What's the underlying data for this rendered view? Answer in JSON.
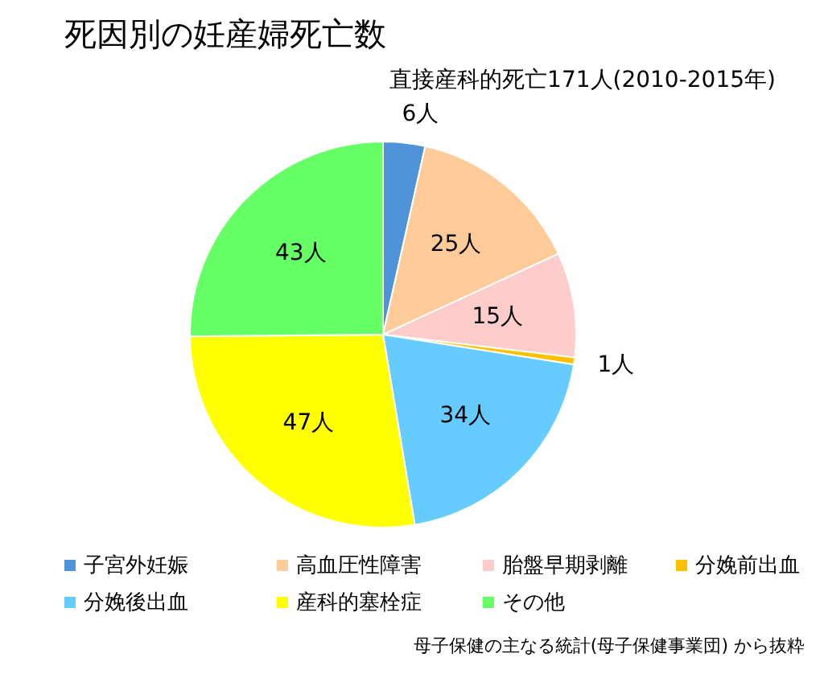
{
  "chart_data": {
    "type": "pie",
    "title": "死因別の妊産婦死亡数",
    "subtitle": "直接産科的死亡171人(2010-2015年)",
    "categories": [
      "子宮外妊娠",
      "高血圧性障害",
      "胎盤早期剥離",
      "分娩前出血",
      "分娩後出血",
      "産科的塞栓症",
      "その他"
    ],
    "values": [
      6,
      25,
      15,
      1,
      34,
      47,
      43
    ],
    "colors": [
      "#4f93d8",
      "#ffcc99",
      "#ffcccc",
      "#ffc000",
      "#66ccff",
      "#ffff00",
      "#66ff66"
    ],
    "value_labels": [
      "6人",
      "25人",
      "15人",
      "1人",
      "34人",
      "47人",
      "43人"
    ],
    "legend": "bottom",
    "annotations": [
      "母子保健の主なる統計(母子保健事業団) から抜粋"
    ]
  }
}
